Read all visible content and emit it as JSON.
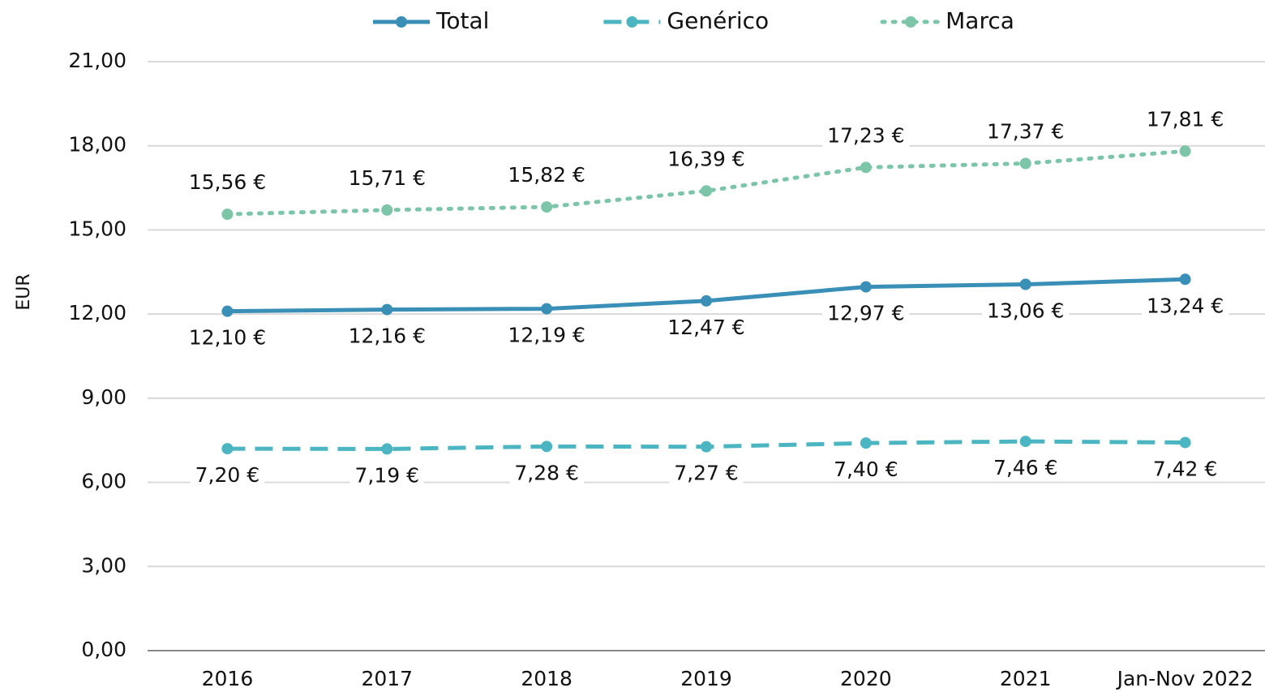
{
  "chart_data": {
    "type": "line",
    "y_label": "EUR",
    "categories": [
      "2016",
      "2017",
      "2018",
      "2019",
      "2020",
      "2021",
      "Jan-Nov 2022"
    ],
    "series": [
      {
        "name": "Total",
        "color": "#3a8fb7",
        "style": "solid",
        "values": [
          12.1,
          12.16,
          12.19,
          12.47,
          12.97,
          13.06,
          13.24
        ],
        "value_labels": [
          "12,10 €",
          "12,16 €",
          "12,19 €",
          "12,47 €",
          "12,97 €",
          "13,06 €",
          "13,24 €"
        ]
      },
      {
        "name": "Genérico",
        "color": "#4bb5c1",
        "style": "dashed",
        "values": [
          7.2,
          7.19,
          7.28,
          7.27,
          7.4,
          7.46,
          7.42
        ],
        "value_labels": [
          "7,20 €",
          "7,19 €",
          "7,28 €",
          "7,27 €",
          "7,40 €",
          "7,46 €",
          "7,42 €"
        ]
      },
      {
        "name": "Marca",
        "color": "#7cc5a8",
        "style": "dotted",
        "values": [
          15.56,
          15.71,
          15.82,
          16.39,
          17.23,
          17.37,
          17.81
        ],
        "value_labels": [
          "15,56 €",
          "15,71 €",
          "15,82 €",
          "16,39 €",
          "17,23 €",
          "17,37 €",
          "17,81 €"
        ]
      }
    ],
    "ylim": [
      0,
      21
    ],
    "yticks": [
      {
        "value": 0,
        "label": "0,00"
      },
      {
        "value": 3,
        "label": "3,00"
      },
      {
        "value": 6,
        "label": "6,00"
      },
      {
        "value": 9,
        "label": "9,00"
      },
      {
        "value": 12,
        "label": "12,00"
      },
      {
        "value": 15,
        "label": "15,00"
      },
      {
        "value": 18,
        "label": "18,00"
      },
      {
        "value": 21,
        "label": "21,00"
      }
    ],
    "grid": true,
    "legend": "top"
  }
}
